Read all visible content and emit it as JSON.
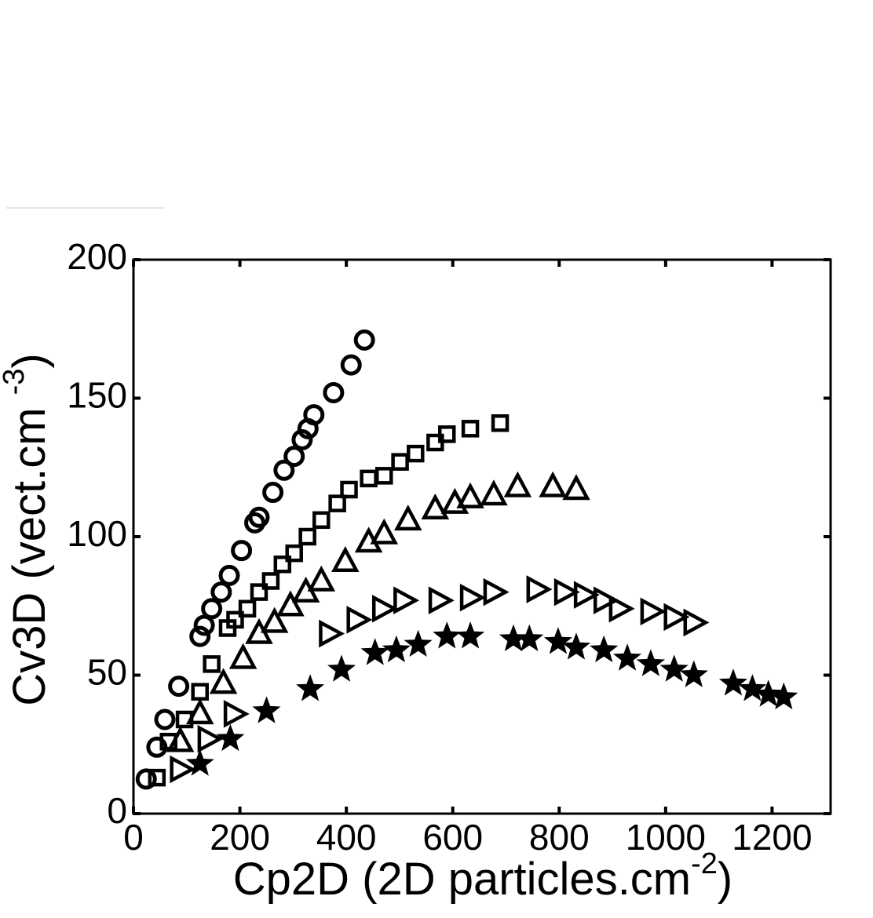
{
  "chart_data": {
    "type": "scatter",
    "xlabel": {
      "text": "Cp2D (2D particles.cm",
      "sup": "-2",
      "end": ")"
    },
    "ylabel": {
      "text": "Cv3D (vect.cm ",
      "sup": "-3",
      "end": ")"
    },
    "xlim": [
      0,
      1310
    ],
    "ylim": [
      0,
      200
    ],
    "xticks": [
      0,
      200,
      400,
      600,
      800,
      1000,
      1200
    ],
    "yticks": [
      0,
      50,
      100,
      150,
      200
    ],
    "grid": false,
    "series": [
      {
        "marker": "circle",
        "color": "#000000",
        "x": [
          24,
          44,
          59,
          85,
          125,
          133,
          147,
          165,
          180,
          203,
          228,
          236,
          262,
          283,
          302,
          317,
          328,
          339,
          376,
          409,
          434
        ],
        "values": [
          12.5,
          24,
          34,
          46,
          64,
          68,
          74,
          80,
          86,
          95,
          105,
          107,
          116,
          124,
          129,
          135,
          139,
          144,
          152,
          162,
          171
        ]
      },
      {
        "marker": "square",
        "color": "#000000",
        "x": [
          44,
          66,
          96,
          125,
          147,
          177,
          191,
          214,
          236,
          258,
          280,
          302,
          327,
          353,
          383,
          405,
          442,
          471,
          501,
          530,
          567,
          589,
          633,
          689
        ],
        "values": [
          13,
          26,
          34,
          44,
          54,
          67,
          70,
          74,
          80,
          84,
          90,
          94,
          100,
          106,
          112,
          117,
          121,
          122,
          127,
          130,
          134,
          137,
          139,
          141
        ]
      },
      {
        "marker": "triangle-up",
        "color": "#000000",
        "x": [
          88,
          125,
          169,
          206,
          236,
          265,
          295,
          324,
          353,
          398,
          442,
          471,
          516,
          567,
          604,
          633,
          677,
          722,
          788,
          832
        ],
        "values": [
          26,
          36,
          47,
          56,
          65,
          69,
          75,
          80,
          84,
          91,
          98,
          101,
          106,
          110,
          112,
          114,
          115,
          118,
          118,
          117
        ]
      },
      {
        "marker": "triangle-right",
        "color": "#000000",
        "x": [
          88,
          140,
          189,
          368,
          420,
          468,
          508,
          574,
          633,
          677,
          758,
          810,
          847,
          884,
          913,
          972,
          1016,
          1053
        ],
        "values": [
          16,
          27,
          36,
          65,
          70,
          74,
          77,
          77,
          78,
          80,
          81,
          80,
          79,
          77,
          74,
          73,
          71,
          69
        ]
      },
      {
        "marker": "star",
        "color": "#000000",
        "x": [
          125,
          182,
          250,
          332,
          391,
          454,
          494,
          535,
          589,
          633,
          714,
          744,
          798,
          832,
          884,
          928,
          972,
          1016,
          1053,
          1127,
          1163,
          1193,
          1222
        ],
        "values": [
          18,
          27,
          37,
          45,
          52,
          58,
          59,
          61,
          64,
          64,
          63,
          63,
          62,
          60,
          59,
          56,
          54,
          52,
          50,
          47,
          45,
          43,
          42
        ]
      }
    ]
  }
}
